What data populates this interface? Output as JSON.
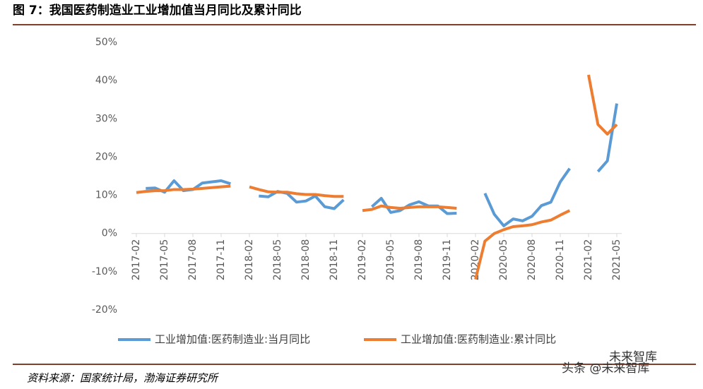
{
  "chart_data": {
    "type": "line",
    "title": "图 7：我国医药制造业工业增加值当月同比及累计同比",
    "source": "资料来源：国家统计局，渤海证券研究所",
    "watermark": [
      "未来智库",
      "头条 @未来智库"
    ],
    "categories": [
      "2017-02",
      null,
      null,
      "2017-05",
      null,
      null,
      "2017-08",
      null,
      null,
      "2017-11",
      null,
      null,
      "2018-02",
      null,
      null,
      "2018-05",
      null,
      null,
      "2018-08",
      null,
      null,
      "2018-11",
      null,
      null,
      "2019-02",
      null,
      null,
      "2019-05",
      null,
      null,
      "2019-08",
      null,
      null,
      "2019-11",
      null,
      null,
      "2020-02",
      null,
      null,
      "2020-05",
      null,
      null,
      "2020-08",
      null,
      null,
      "2020-11",
      null,
      null,
      "2021-02",
      null,
      null,
      "2021-05"
    ],
    "series": [
      {
        "name": "工业增加值:医药制造业:当月同比",
        "color": "#5b9bd5",
        "values": [
          null,
          11.8,
          11.9,
          10.8,
          13.8,
          11.2,
          11.5,
          13.2,
          13.5,
          13.8,
          13.0,
          null,
          null,
          9.8,
          9.6,
          11.0,
          10.5,
          8.2,
          8.5,
          9.8,
          7.0,
          6.5,
          8.8,
          null,
          null,
          7.0,
          9.2,
          5.5,
          6.0,
          7.5,
          8.3,
          7.2,
          7.2,
          5.2,
          5.3,
          null,
          null,
          10.5,
          5.0,
          2.0,
          3.8,
          3.3,
          4.5,
          7.3,
          8.2,
          13.5,
          17.0,
          null,
          null,
          16.2,
          19.0,
          34.0
        ]
      },
      {
        "name": "工业增加值:医药制造业:累计同比",
        "color": "#ed7d31",
        "values": [
          10.7,
          11.0,
          11.2,
          11.2,
          11.5,
          11.5,
          11.6,
          11.8,
          12.0,
          12.2,
          12.4,
          null,
          12.2,
          11.5,
          10.9,
          10.8,
          10.8,
          10.4,
          10.2,
          10.2,
          9.9,
          9.7,
          9.7,
          null,
          6.0,
          6.3,
          7.2,
          6.8,
          6.6,
          6.8,
          7.0,
          7.0,
          7.0,
          6.8,
          6.6,
          null,
          -12.0,
          -2.0,
          0.0,
          1.0,
          1.8,
          2.0,
          2.3,
          3.0,
          3.5,
          4.8,
          6.0,
          null,
          41.5,
          28.5,
          26.0,
          28.5
        ]
      }
    ],
    "ylim": [
      -20,
      50
    ],
    "yticks": [
      {
        "value": -20,
        "label": "-20%"
      },
      {
        "value": -10,
        "label": "-10%"
      },
      {
        "value": 0,
        "label": "0%"
      },
      {
        "value": 10,
        "label": "10%"
      },
      {
        "value": 20,
        "label": "20%"
      },
      {
        "value": 30,
        "label": "30%"
      },
      {
        "value": 40,
        "label": "40%"
      },
      {
        "value": 50,
        "label": "50%"
      }
    ]
  }
}
